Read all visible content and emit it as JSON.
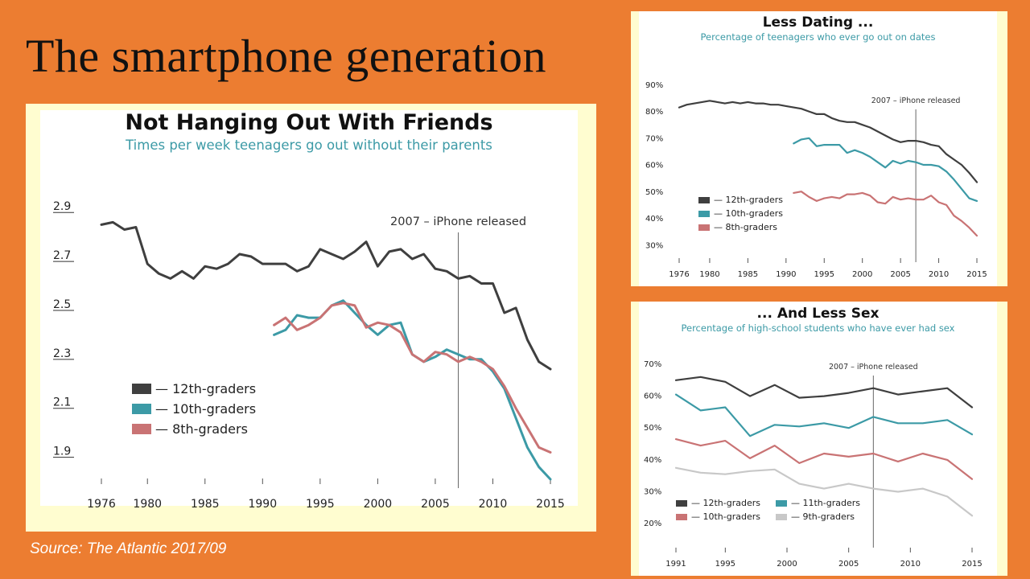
{
  "slide": {
    "title": "The smartphone generation",
    "source": "Source: The Atlantic 2017/09"
  },
  "chart_data": [
    {
      "id": "friends",
      "type": "line",
      "title": "Not Hanging Out With Friends",
      "subtitle": "Times per week teenagers go out without their parents",
      "xlabel": "",
      "ylabel": "",
      "xlim": [
        1976,
        2015
      ],
      "ylim": [
        1.8,
        2.95
      ],
      "yticks": [
        1.9,
        2.1,
        2.3,
        2.5,
        2.7,
        2.9
      ],
      "ytick_labels": [
        "1.9",
        "2.1",
        "2.3",
        "2.5",
        "2.7",
        "2.9"
      ],
      "xticks": [
        1976,
        1980,
        1985,
        1990,
        1995,
        2000,
        2005,
        2010,
        2015
      ],
      "grid": false,
      "legend_position": "bottom-left",
      "annotation": {
        "x": 2007,
        "text": "2007 – iPhone released"
      },
      "series": [
        {
          "name": "— 12th-graders",
          "color": "#3f3f3f",
          "x": [
            1976,
            1977,
            1978,
            1979,
            1980,
            1981,
            1982,
            1983,
            1984,
            1985,
            1986,
            1987,
            1988,
            1989,
            1990,
            1991,
            1992,
            1993,
            1994,
            1995,
            1996,
            1997,
            1998,
            1999,
            2000,
            2001,
            2002,
            2003,
            2004,
            2005,
            2006,
            2007,
            2008,
            2009,
            2010,
            2011,
            2012,
            2013,
            2014,
            2015
          ],
          "y": [
            2.85,
            2.86,
            2.83,
            2.84,
            2.69,
            2.65,
            2.63,
            2.66,
            2.63,
            2.68,
            2.67,
            2.69,
            2.73,
            2.72,
            2.69,
            2.69,
            2.69,
            2.66,
            2.68,
            2.75,
            2.73,
            2.71,
            2.74,
            2.78,
            2.68,
            2.74,
            2.75,
            2.71,
            2.73,
            2.67,
            2.66,
            2.63,
            2.64,
            2.61,
            2.61,
            2.49,
            2.51,
            2.38,
            2.29,
            2.26
          ]
        },
        {
          "name": "— 10th-graders",
          "color": "#3c9aa6",
          "x": [
            1991,
            1992,
            1993,
            1994,
            1995,
            1996,
            1997,
            1998,
            1999,
            2000,
            2001,
            2002,
            2003,
            2004,
            2005,
            2006,
            2007,
            2008,
            2009,
            2010,
            2011,
            2012,
            2013,
            2014,
            2015
          ],
          "y": [
            2.4,
            2.42,
            2.48,
            2.47,
            2.47,
            2.52,
            2.54,
            2.49,
            2.44,
            2.4,
            2.44,
            2.45,
            2.32,
            2.29,
            2.31,
            2.34,
            2.32,
            2.3,
            2.3,
            2.25,
            2.18,
            2.06,
            1.94,
            1.86,
            1.81
          ]
        },
        {
          "name": "— 8th-graders",
          "color": "#c97374",
          "x": [
            1991,
            1992,
            1993,
            1994,
            1995,
            1996,
            1997,
            1998,
            1999,
            2000,
            2001,
            2002,
            2003,
            2004,
            2005,
            2006,
            2007,
            2008,
            2009,
            2010,
            2011,
            2012,
            2013,
            2014,
            2015
          ],
          "y": [
            2.44,
            2.47,
            2.42,
            2.44,
            2.47,
            2.52,
            2.53,
            2.52,
            2.43,
            2.45,
            2.44,
            2.41,
            2.32,
            2.29,
            2.33,
            2.32,
            2.29,
            2.31,
            2.29,
            2.26,
            2.19,
            2.1,
            2.02,
            1.94,
            1.92
          ]
        }
      ]
    },
    {
      "id": "dating",
      "type": "line",
      "title": "Less Dating ...",
      "subtitle": "Percentage of teenagers who ever go out on dates",
      "xlabel": "",
      "ylabel": "",
      "xlim": [
        1976,
        2015
      ],
      "ylim": [
        28,
        93
      ],
      "yticks": [
        30,
        40,
        50,
        60,
        70,
        80,
        90
      ],
      "ytick_labels": [
        "30%",
        "40%",
        "50%",
        "60%",
        "70%",
        "80%",
        "90%"
      ],
      "xticks": [
        1976,
        1980,
        1985,
        1990,
        1995,
        2000,
        2005,
        2010,
        2015
      ],
      "grid": false,
      "legend_position": "bottom-left",
      "annotation": {
        "x": 2007,
        "text": "2007 – iPhone released"
      },
      "series": [
        {
          "name": "— 12th-graders",
          "color": "#3f3f3f",
          "x": [
            1976,
            1977,
            1978,
            1979,
            1980,
            1981,
            1982,
            1983,
            1984,
            1985,
            1986,
            1987,
            1988,
            1989,
            1990,
            1991,
            1992,
            1993,
            1994,
            1995,
            1996,
            1997,
            1998,
            1999,
            2000,
            2001,
            2002,
            2003,
            2004,
            2005,
            2006,
            2007,
            2008,
            2009,
            2010,
            2011,
            2012,
            2013,
            2014,
            2015
          ],
          "y": [
            83.5,
            84.5,
            85,
            85.5,
            86,
            85.5,
            85,
            85.5,
            85,
            85.5,
            85,
            85,
            84.5,
            84.5,
            84,
            83.5,
            83,
            82,
            81,
            81,
            79.5,
            78.5,
            78,
            78,
            77,
            76,
            74.5,
            73,
            71.5,
            70.5,
            71,
            71,
            70.5,
            69.5,
            69,
            66,
            64,
            62,
            59,
            55.5
          ]
        },
        {
          "name": "— 10th-graders",
          "color": "#3c9aa6",
          "x": [
            1991,
            1992,
            1993,
            1994,
            1995,
            1996,
            1997,
            1998,
            1999,
            2000,
            2001,
            2002,
            2003,
            2004,
            2005,
            2006,
            2007,
            2008,
            2009,
            2010,
            2011,
            2012,
            2013,
            2014,
            2015
          ],
          "y": [
            70,
            71.5,
            72,
            69,
            69.5,
            69.5,
            69.5,
            66.5,
            67.5,
            66.5,
            65,
            63,
            61,
            63.5,
            62.5,
            63.5,
            63,
            62,
            62,
            61.5,
            59.5,
            56.5,
            53,
            49.5,
            48.5
          ]
        },
        {
          "name": "— 8th-graders",
          "color": "#c97374",
          "x": [
            1991,
            1992,
            1993,
            1994,
            1995,
            1996,
            1997,
            1998,
            1999,
            2000,
            2001,
            2002,
            2003,
            2004,
            2005,
            2006,
            2007,
            2008,
            2009,
            2010,
            2011,
            2012,
            2013,
            2014,
            2015
          ],
          "y": [
            51.5,
            52,
            50,
            48.5,
            49.5,
            50,
            49.5,
            51,
            51,
            51.5,
            50.5,
            48,
            47.5,
            50,
            49,
            49.5,
            49,
            49,
            50.5,
            48,
            47,
            43,
            41,
            38.5,
            35.5
          ]
        }
      ]
    },
    {
      "id": "sex",
      "type": "line",
      "title": "... And Less Sex",
      "subtitle": "Percentage of high-school students who have ever had sex",
      "xlabel": "",
      "ylabel": "",
      "xlim": [
        1991,
        2015
      ],
      "ylim": [
        16,
        73
      ],
      "yticks": [
        20,
        30,
        40,
        50,
        60,
        70
      ],
      "ytick_labels": [
        "20%",
        "30%",
        "40%",
        "50%",
        "60%",
        "70%"
      ],
      "xticks": [
        1991,
        1995,
        2000,
        2005,
        2010,
        2015
      ],
      "grid": false,
      "legend_position": "bottom-left",
      "annotation": {
        "x": 2007,
        "text": "2007 – iPhone released"
      },
      "series": [
        {
          "name": "— 12th-graders",
          "color": "#3f3f3f",
          "x": [
            1991,
            1993,
            1995,
            1997,
            1999,
            2001,
            2003,
            2005,
            2007,
            2009,
            2011,
            2013,
            2015
          ],
          "y": [
            66.5,
            67.5,
            66,
            61.5,
            65,
            61,
            61.5,
            62.5,
            64,
            62,
            63,
            64,
            58
          ]
        },
        {
          "name": "— 11th-graders",
          "color": "#3c9aa6",
          "x": [
            1991,
            1993,
            1995,
            1997,
            1999,
            2001,
            2003,
            2005,
            2007,
            2009,
            2011,
            2013,
            2015
          ],
          "y": [
            62,
            57,
            58,
            49,
            52.5,
            52,
            53,
            51.5,
            55,
            53,
            53,
            54,
            49.5
          ]
        },
        {
          "name": "— 10th-graders",
          "color": "#c97374",
          "x": [
            1991,
            1993,
            1995,
            1997,
            1999,
            2001,
            2003,
            2005,
            2007,
            2009,
            2011,
            2013,
            2015
          ],
          "y": [
            48,
            46,
            47.5,
            42,
            46,
            40.5,
            43.5,
            42.5,
            43.5,
            41,
            43.5,
            41.5,
            35.5
          ]
        },
        {
          "name": "— 9th-graders",
          "color": "#c8c8c8",
          "x": [
            1991,
            1993,
            1995,
            1997,
            1999,
            2001,
            2003,
            2005,
            2007,
            2009,
            2011,
            2013,
            2015
          ],
          "y": [
            39,
            37.5,
            37,
            38,
            38.5,
            34,
            32.5,
            34,
            32.5,
            31.5,
            32.5,
            30,
            24
          ]
        }
      ]
    }
  ]
}
